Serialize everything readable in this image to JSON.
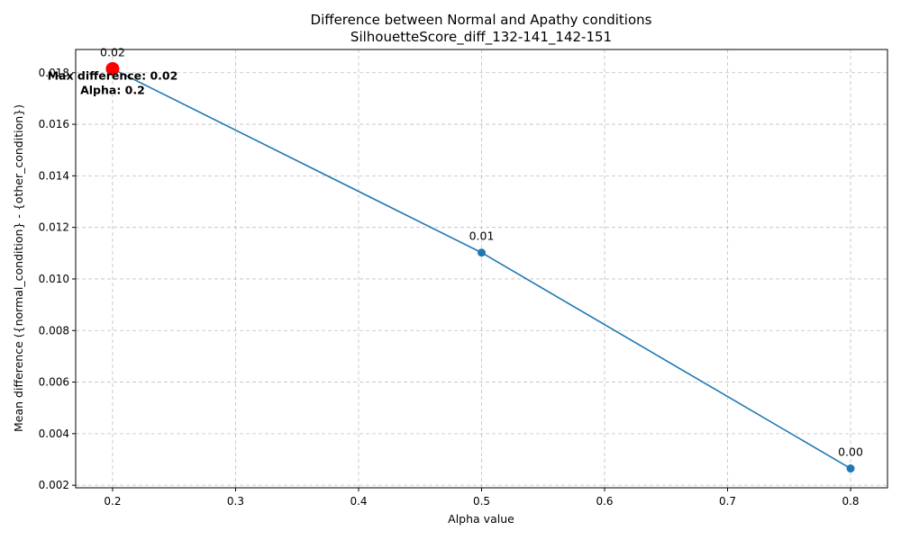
{
  "chart_data": {
    "type": "line",
    "title": "Difference between Normal and Apathy conditions",
    "subtitle": "SilhouetteScore_diff_132-141_142-151",
    "xlabel": "Alpha value",
    "ylabel": "Mean difference ({normal_condition} - {other_condition})",
    "xlim": [
      0.17,
      0.83
    ],
    "ylim": [
      0.0019,
      0.0189
    ],
    "x_ticks": [
      0.2,
      0.3,
      0.4,
      0.5,
      0.6,
      0.7,
      0.8
    ],
    "x_tick_labels": [
      "0.2",
      "0.3",
      "0.4",
      "0.5",
      "0.6",
      "0.7",
      "0.8"
    ],
    "y_ticks": [
      0.002,
      0.004,
      0.006,
      0.008,
      0.01,
      0.012,
      0.014,
      0.016,
      0.018
    ],
    "y_tick_labels": [
      "0.002",
      "0.004",
      "0.006",
      "0.008",
      "0.010",
      "0.012",
      "0.014",
      "0.016",
      "0.018"
    ],
    "grid": true,
    "series": [
      {
        "x": [
          0.2,
          0.5,
          0.8
        ],
        "y": [
          0.01815,
          0.01102,
          0.00265
        ],
        "point_labels": [
          "0.02",
          "0.01",
          "0.00"
        ],
        "color": "#1f77b4"
      }
    ],
    "highlight": {
      "x": 0.2,
      "y": 0.01815,
      "color": "#ff0000",
      "annotation_lines": [
        "Max difference: 0.02",
        "Alpha: 0.2"
      ]
    }
  }
}
